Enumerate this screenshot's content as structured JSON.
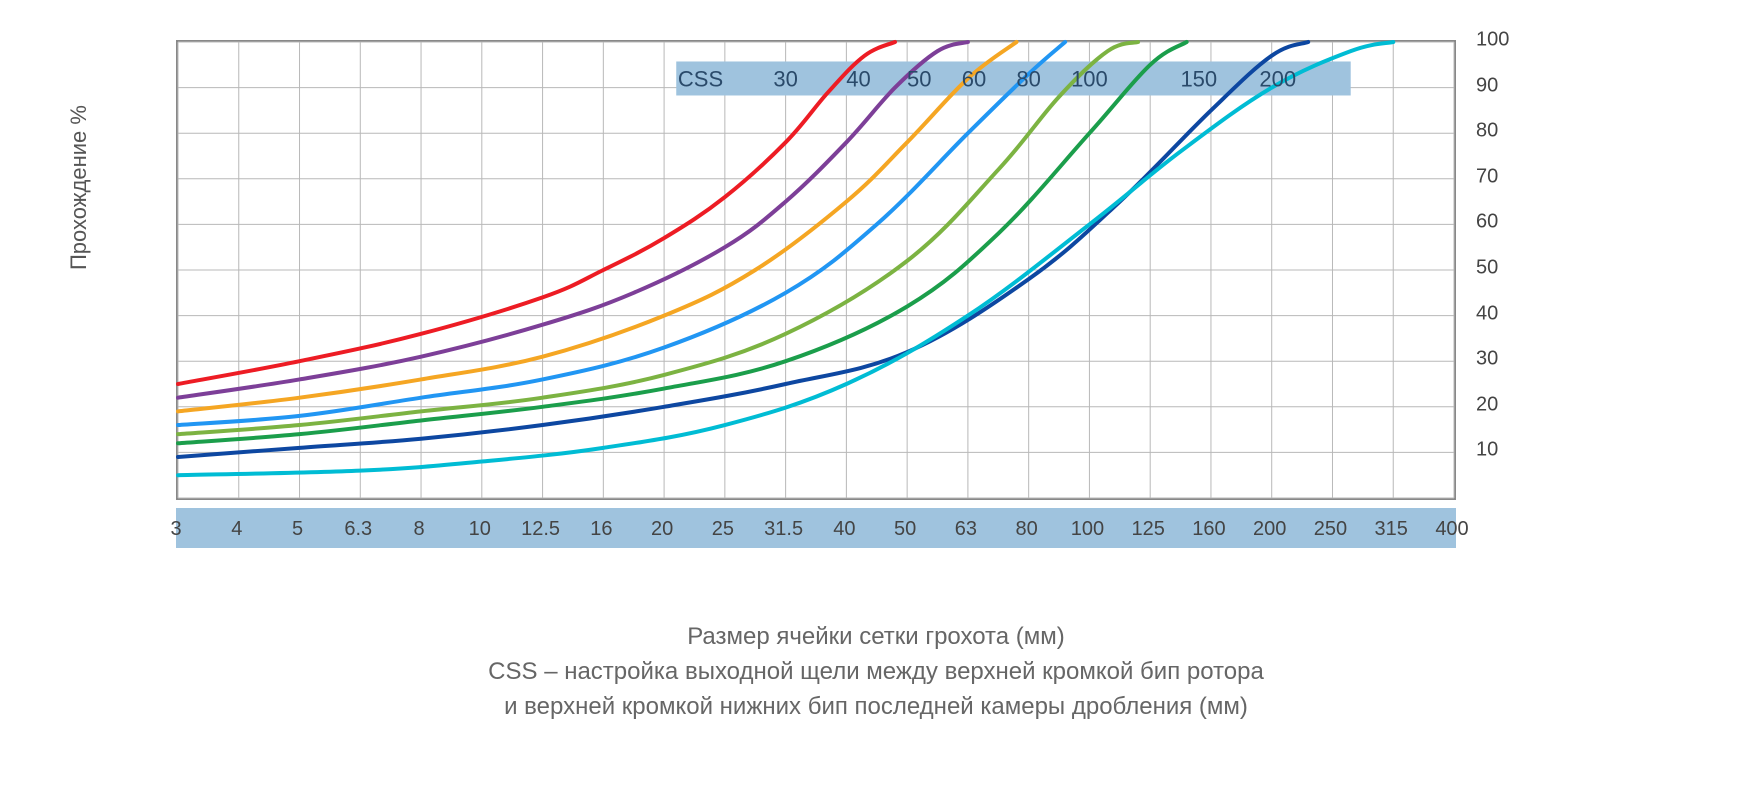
{
  "chart": {
    "type": "line",
    "y_axis_label": "Прохождение %",
    "x_axis_caption_1": "Размер ячейки сетки грохота (мм)",
    "x_axis_caption_2": "CSS – настройка выходной щели между верхней кромкой бип ротора",
    "x_axis_caption_3": "и верхней кромкой нижних бип последней камеры дробления (мм)",
    "x_ticks": [
      "3",
      "4",
      "5",
      "6.3",
      "8",
      "10",
      "12.5",
      "16",
      "20",
      "25",
      "31.5",
      "40",
      "50",
      "63",
      "80",
      "100",
      "125",
      "160",
      "200",
      "250",
      "315",
      "400"
    ],
    "y_ticks": [
      10,
      20,
      30,
      40,
      50,
      60,
      70,
      80,
      90,
      100
    ],
    "y_min": 0,
    "y_max": 100,
    "grid_color": "#b8b8b8",
    "border_color": "#888888",
    "plot_bg": "#ffffff",
    "x_band_color": "#9fc3de",
    "line_width": 4,
    "legend_prefix": "CSS",
    "legend_labels": [
      "30",
      "40",
      "50",
      "60",
      "80",
      "100",
      "150",
      "200"
    ],
    "legend_color": "#2a4a6a",
    "series": [
      {
        "name": "CSS 30",
        "color": "#ed1c24",
        "points": [
          [
            0,
            25
          ],
          [
            2,
            30
          ],
          [
            4,
            36
          ],
          [
            6,
            44
          ],
          [
            7,
            50
          ],
          [
            8,
            57
          ],
          [
            9,
            66
          ],
          [
            10,
            78
          ],
          [
            10.7,
            89
          ],
          [
            11.3,
            97
          ],
          [
            11.8,
            100
          ]
        ]
      },
      {
        "name": "CSS 40",
        "color": "#7d3f98",
        "points": [
          [
            0,
            22
          ],
          [
            2,
            26
          ],
          [
            4,
            31
          ],
          [
            6,
            38
          ],
          [
            7.5,
            45
          ],
          [
            9,
            55
          ],
          [
            10,
            65
          ],
          [
            11,
            78
          ],
          [
            11.8,
            90
          ],
          [
            12.5,
            98
          ],
          [
            13,
            100
          ]
        ]
      },
      {
        "name": "CSS 50",
        "color": "#f5a623",
        "points": [
          [
            0,
            19
          ],
          [
            2,
            22
          ],
          [
            4,
            26
          ],
          [
            6,
            31
          ],
          [
            8,
            40
          ],
          [
            9.5,
            50
          ],
          [
            11,
            65
          ],
          [
            12,
            78
          ],
          [
            13,
            92
          ],
          [
            13.8,
            100
          ]
        ]
      },
      {
        "name": "CSS 60",
        "color": "#2196f3",
        "points": [
          [
            0,
            16
          ],
          [
            2,
            18
          ],
          [
            4,
            22
          ],
          [
            6,
            26
          ],
          [
            8,
            33
          ],
          [
            10,
            45
          ],
          [
            11.5,
            60
          ],
          [
            13,
            80
          ],
          [
            14,
            93
          ],
          [
            14.6,
            100
          ]
        ]
      },
      {
        "name": "CSS 80",
        "color": "#7cb342",
        "points": [
          [
            0,
            14
          ],
          [
            2,
            16
          ],
          [
            4,
            19
          ],
          [
            6,
            22
          ],
          [
            8,
            27
          ],
          [
            10,
            36
          ],
          [
            12,
            52
          ],
          [
            13.5,
            72
          ],
          [
            14.5,
            88
          ],
          [
            15.3,
            98
          ],
          [
            15.8,
            100
          ]
        ]
      },
      {
        "name": "CSS 100",
        "color": "#1b9e4b",
        "points": [
          [
            0,
            12
          ],
          [
            2,
            14
          ],
          [
            4,
            17
          ],
          [
            6,
            20
          ],
          [
            8,
            24
          ],
          [
            10,
            30
          ],
          [
            12,
            42
          ],
          [
            13.5,
            58
          ],
          [
            15,
            80
          ],
          [
            16,
            95
          ],
          [
            16.6,
            100
          ]
        ]
      },
      {
        "name": "CSS 150",
        "color": "#0d47a1",
        "points": [
          [
            0,
            9
          ],
          [
            2,
            11
          ],
          [
            4,
            13
          ],
          [
            6,
            16
          ],
          [
            8,
            20
          ],
          [
            10,
            25
          ],
          [
            12,
            32
          ],
          [
            14,
            48
          ],
          [
            15.5,
            65
          ],
          [
            17,
            85
          ],
          [
            18,
            97
          ],
          [
            18.6,
            100
          ]
        ]
      },
      {
        "name": "CSS 200",
        "color": "#00bcd4",
        "points": [
          [
            0,
            5
          ],
          [
            3,
            6
          ],
          [
            5,
            8
          ],
          [
            7,
            11
          ],
          [
            9,
            16
          ],
          [
            11,
            25
          ],
          [
            13,
            40
          ],
          [
            15,
            60
          ],
          [
            16.5,
            76
          ],
          [
            18,
            90
          ],
          [
            19.3,
            98
          ],
          [
            20,
            100
          ]
        ]
      }
    ]
  },
  "colors": {
    "text": "#555555",
    "tick_text": "#444444",
    "caption_text": "#666666"
  },
  "fonts": {
    "axis_label_size": 22,
    "tick_size": 20,
    "caption_size": 24
  }
}
